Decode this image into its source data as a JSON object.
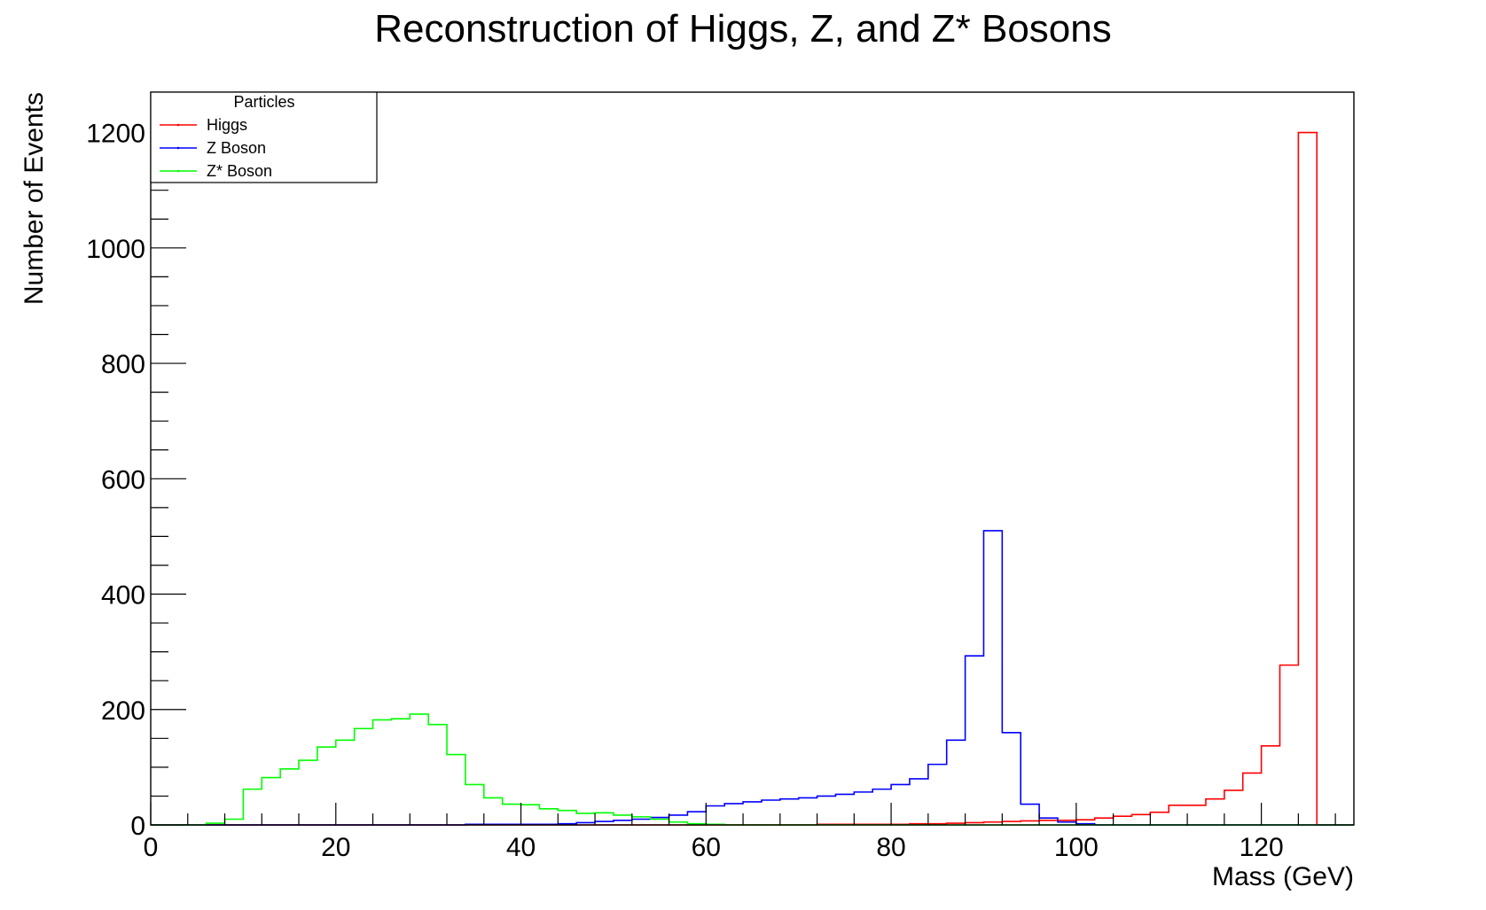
{
  "chart_data": {
    "type": "line",
    "style": "step-histogram",
    "title": "Reconstruction of Higgs, Z, and Z* Bosons",
    "xlabel": "Mass (GeV)",
    "ylabel": "Number of Events",
    "xlim": [
      0,
      130
    ],
    "ylim": [
      0,
      1270
    ],
    "bin_width": 2,
    "x_ticks": [
      0,
      20,
      40,
      60,
      80,
      100,
      120
    ],
    "x_tick_labels": [
      "0",
      "20",
      "40",
      "60",
      "80",
      "100",
      "120"
    ],
    "y_ticks": [
      0,
      200,
      400,
      600,
      800,
      1000,
      1200
    ],
    "y_tick_labels": [
      "0",
      "200",
      "400",
      "600",
      "800",
      "1000",
      "1200"
    ],
    "legend": {
      "title": "Particles",
      "position": "top-left"
    },
    "series": [
      {
        "name": "Higgs",
        "color": "#ff0000",
        "bin_edges": [
          72,
          74,
          76,
          78,
          80,
          82,
          84,
          86,
          88,
          90,
          92,
          94,
          96,
          98,
          100,
          102,
          104,
          106,
          108,
          110,
          112,
          114,
          116,
          118,
          120,
          122,
          124,
          126
        ],
        "counts": [
          1,
          1,
          1,
          1,
          1,
          2,
          2,
          3,
          4,
          5,
          6,
          7,
          8,
          8,
          9,
          12,
          15,
          18,
          22,
          34,
          34,
          45,
          60,
          90,
          137,
          277,
          1200
        ]
      },
      {
        "name": "Z Boson",
        "color": "#0000ff",
        "bin_edges": [
          4,
          6,
          8,
          10,
          12,
          14,
          16,
          18,
          20,
          22,
          24,
          26,
          28,
          30,
          32,
          34,
          36,
          38,
          40,
          42,
          44,
          46,
          48,
          50,
          52,
          54,
          56,
          58,
          60,
          62,
          64,
          66,
          68,
          70,
          72,
          74,
          76,
          78,
          80,
          82,
          84,
          86,
          88,
          90,
          92,
          94,
          96,
          98,
          100,
          102
        ],
        "counts": [
          0,
          0,
          0,
          0,
          0,
          0,
          0,
          0,
          0,
          0,
          0,
          0,
          0,
          0,
          0,
          1,
          1,
          1,
          1,
          1,
          2,
          4,
          6,
          8,
          10,
          13,
          17,
          23,
          33,
          37,
          40,
          43,
          45,
          47,
          50,
          53,
          57,
          62,
          70,
          80,
          105,
          147,
          293,
          510,
          160,
          36,
          12,
          5,
          2
        ]
      },
      {
        "name": "Z* Boson",
        "color": "#00ff00",
        "bin_edges": [
          6,
          8,
          10,
          12,
          14,
          16,
          18,
          20,
          22,
          24,
          26,
          28,
          30,
          32,
          34,
          36,
          38,
          40,
          42,
          44,
          46,
          48,
          50,
          52,
          54,
          56,
          58,
          60,
          62
        ],
        "counts": [
          3,
          10,
          62,
          82,
          97,
          112,
          135,
          147,
          167,
          182,
          184,
          192,
          174,
          122,
          70,
          47,
          36,
          35,
          28,
          25,
          20,
          21,
          17,
          14,
          10,
          5,
          2,
          1
        ]
      }
    ]
  }
}
